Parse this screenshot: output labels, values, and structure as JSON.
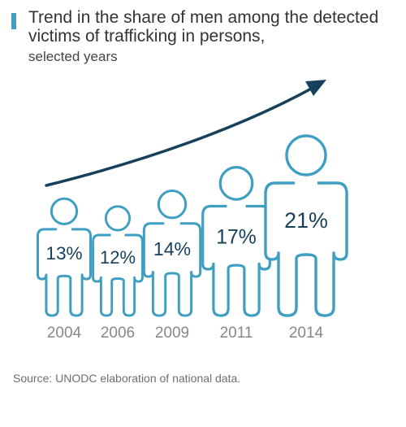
{
  "colors": {
    "accent": "#3f9fc2",
    "dark_blue": "#17405c",
    "text": "#333333",
    "source_text": "#6e6e6e"
  },
  "header": {
    "title": "Trend in the share of men among the detected victims of trafficking in persons,",
    "subtitle": "selected years"
  },
  "chart_data": {
    "type": "pictograph",
    "title": "Trend in the share of men among the detected victims of trafficking in persons,",
    "subtitle": "selected years",
    "categories": [
      "2004",
      "2006",
      "2009",
      "2011",
      "2014"
    ],
    "values": [
      13,
      12,
      14,
      17,
      21
    ],
    "value_labels": [
      "13%",
      "12%",
      "14%",
      "17%",
      "21%"
    ],
    "unit": "%",
    "annotation": "upward trend arrow"
  },
  "footer": {
    "source": "Source: UNODC elaboration of national data."
  }
}
